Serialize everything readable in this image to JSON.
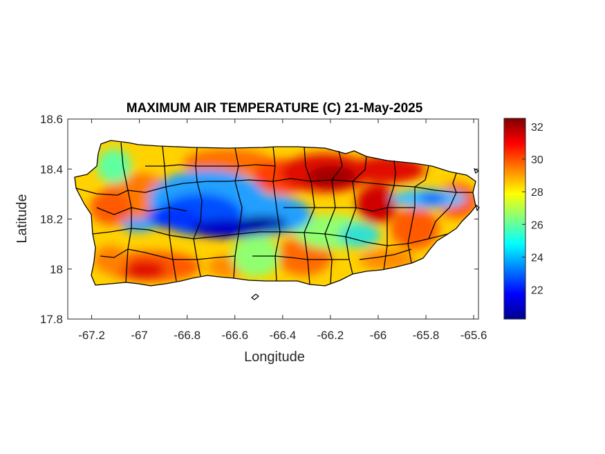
{
  "title": "MAXIMUM AIR TEMPERATURE (C) 21-May-2025",
  "xlabel": "Longitude",
  "ylabel": "Latitude",
  "x_ticks": [
    "-67.2",
    "-67",
    "-66.8",
    "-66.6",
    "-66.4",
    "-66.2",
    "-66",
    "-65.8",
    "-65.6"
  ],
  "y_ticks": [
    "18.6",
    "18.4",
    "18.2",
    "18",
    "17.8"
  ],
  "colorbar_ticks": [
    "32",
    "30",
    "28",
    "26",
    "24",
    "22"
  ],
  "colormap": "jet",
  "map_data": {
    "region": "Puerto Rico",
    "xlim": [
      -67.3,
      -65.58
    ],
    "ylim": [
      17.8,
      18.6
    ],
    "colorbar_range": [
      20.2,
      32.5
    ],
    "colorbar_tick_values": [
      32,
      30,
      28,
      26,
      24,
      22
    ],
    "hot_spots": [
      {
        "lon": -66.25,
        "lat": 18.38,
        "value": 32
      },
      {
        "lon": -66.0,
        "lat": 18.3,
        "value": 31.5
      },
      {
        "lon": -67.0,
        "lat": 18.0,
        "value": 31
      },
      {
        "lon": -67.2,
        "lat": 18.32,
        "value": 30.5
      },
      {
        "lon": -66.38,
        "lat": 18.08,
        "value": 30
      },
      {
        "lon": -66.15,
        "lat": 18.0,
        "value": 30
      }
    ],
    "cool_spots": [
      {
        "lon": -66.75,
        "lat": 18.18,
        "value": 20.5
      },
      {
        "lon": -66.55,
        "lat": 18.17,
        "value": 21
      },
      {
        "lon": -66.9,
        "lat": 18.22,
        "value": 22.5
      },
      {
        "lon": -65.82,
        "lat": 18.29,
        "value": 24
      }
    ]
  }
}
